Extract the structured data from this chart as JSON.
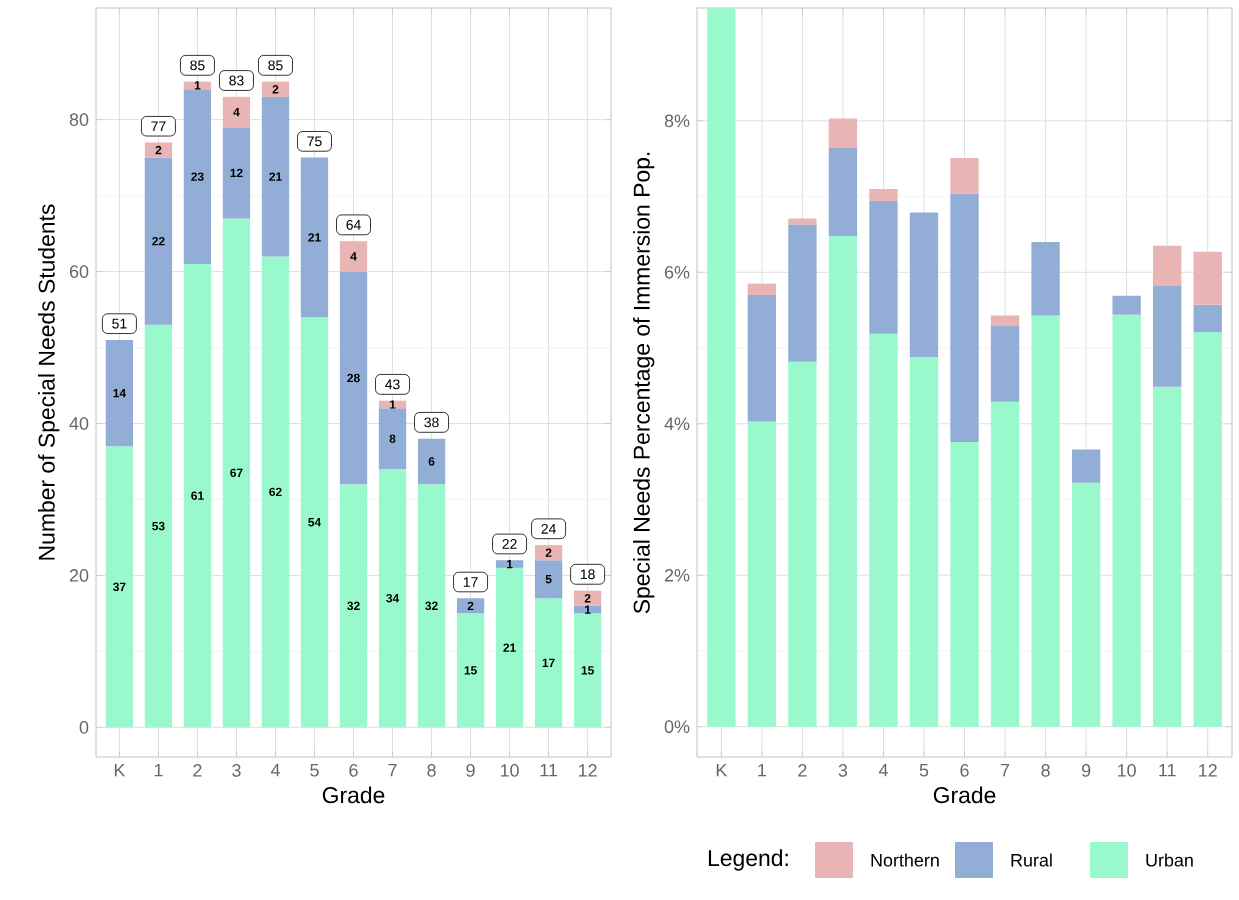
{
  "chart_data": [
    {
      "type": "bar",
      "stacked": true,
      "xlabel": "Grade",
      "ylabel": "Number of Special Needs Students",
      "categories": [
        "K",
        "1",
        "2",
        "3",
        "4",
        "5",
        "6",
        "7",
        "8",
        "9",
        "10",
        "11",
        "12"
      ],
      "series": [
        {
          "color": "#99f9cd",
          "values": [
            37,
            53,
            61,
            67,
            62,
            54,
            32,
            34,
            32,
            15,
            21,
            17,
            15
          ]
        },
        {
          "color": "#93aed6",
          "values": [
            14,
            22,
            23,
            12,
            21,
            21,
            28,
            8,
            6,
            2,
            1,
            5,
            1
          ]
        },
        {
          "color": "#e8b4b4",
          "values": [
            null,
            2,
            1,
            4,
            2,
            null,
            4,
            1,
            null,
            null,
            null,
            2,
            2
          ]
        }
      ],
      "ylim": [
        -3.9,
        94.7
      ],
      "yticks": [
        0,
        20,
        40,
        60,
        80
      ],
      "grid": true,
      "data_labels": true,
      "totals": [
        "51",
        "77",
        "85",
        "83",
        "85",
        "75",
        "64",
        "43",
        "38",
        "17",
        "22",
        "24",
        "18"
      ]
    },
    {
      "type": "bar",
      "stacked": true,
      "xlabel": "Grade",
      "ylabel": "Special Needs Percentage of Immersion Pop.",
      "legend_title": "Legend:",
      "legend": "bottom",
      "categories": [
        "K",
        "1",
        "2",
        "3",
        "4",
        "5",
        "6",
        "7",
        "8",
        "9",
        "10",
        "11",
        "12"
      ],
      "series": [
        {
          "name": "Urban",
          "color": "#99f9cd",
          "values": [
            9.49,
            4.03,
            4.82,
            6.48,
            5.19,
            4.88,
            3.76,
            4.29,
            5.43,
            3.22,
            5.44,
            4.49,
            5.21
          ]
        },
        {
          "name": "Rural",
          "color": "#93aed6",
          "values": [
            null,
            1.67,
            1.81,
            1.16,
            1.75,
            1.91,
            3.28,
            1.0,
            0.97,
            0.44,
            0.25,
            1.33,
            0.36
          ]
        },
        {
          "name": "Northern",
          "color": "#e8b4b4",
          "values": [
            null,
            0.15,
            0.08,
            0.39,
            0.16,
            null,
            0.47,
            0.14,
            null,
            null,
            null,
            0.53,
            0.7
          ]
        }
      ],
      "ylim": [
        -0.4,
        9.49
      ],
      "yticks": [
        {
          "value": 0,
          "label": "0%"
        },
        {
          "value": 2,
          "label": "2%"
        },
        {
          "value": 4,
          "label": "4%"
        },
        {
          "value": 6,
          "label": "6%"
        },
        {
          "value": 8,
          "label": "8%"
        }
      ],
      "grid": true
    }
  ]
}
